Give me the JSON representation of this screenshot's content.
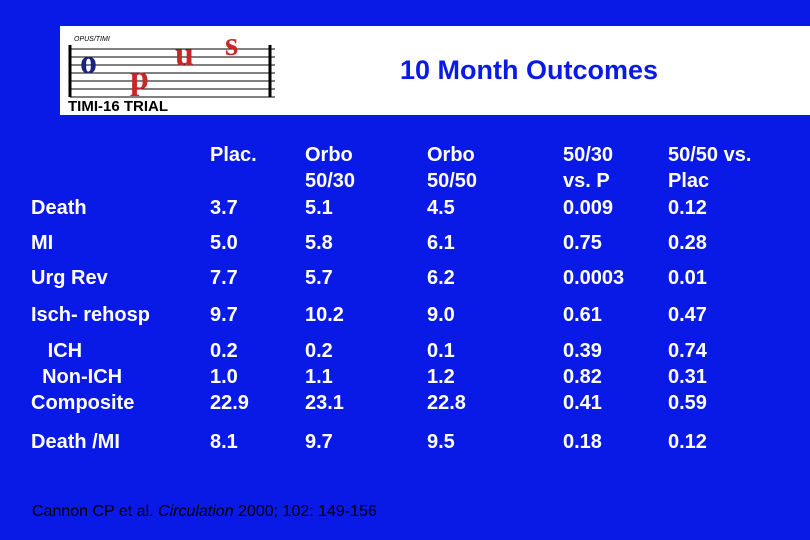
{
  "header": {
    "title": "10 Month Outcomes",
    "logo": {
      "top_text": "OPUS/TIMI",
      "word": "opus",
      "subtitle": "TIMI-16 TRIAL"
    }
  },
  "table": {
    "columns": [
      "Plac.",
      "Orbo\n50/30",
      "Orbo\n50/50",
      "50/30\nvs. P",
      "50/50 vs.\nPlac"
    ],
    "rows": [
      {
        "label": "Death",
        "values": [
          "3.7",
          "5.1",
          "4.5",
          "0.009",
          "0.12"
        ]
      },
      {
        "label": "MI",
        "values": [
          "5.0",
          "5.8",
          "6.1",
          "0.75",
          "0.28"
        ]
      },
      {
        "label": "Urg Rev",
        "values": [
          "7.7",
          "5.7",
          "6.2",
          "0.0003",
          "0.01"
        ]
      },
      {
        "label": "Isch- rehosp",
        "values": [
          "9.7",
          "10.2",
          "9.0",
          "0.61",
          "0.47"
        ]
      },
      {
        "label": "   ICH\n  Non-ICH\nComposite",
        "values": [
          "0.2\n1.0\n22.9",
          "0.2\n1.1\n23.1",
          "0.1\n1.2\n22.8",
          "0.39\n0.82\n0.41",
          "0.74\n0.31\n0.59"
        ]
      },
      {
        "label": "Death /MI",
        "values": [
          "8.1",
          "9.7",
          "9.5",
          "0.18",
          "0.12"
        ]
      }
    ]
  },
  "citation": {
    "authors": "Cannon CP et al.",
    "journal": "Circulation",
    "details": "2000; 102: 149-156"
  },
  "colors": {
    "background": "#0a1ae6",
    "text": "#ffffff",
    "title": "#0a1ae6",
    "logo_red": "#c62828",
    "logo_blue": "#1a237e"
  }
}
